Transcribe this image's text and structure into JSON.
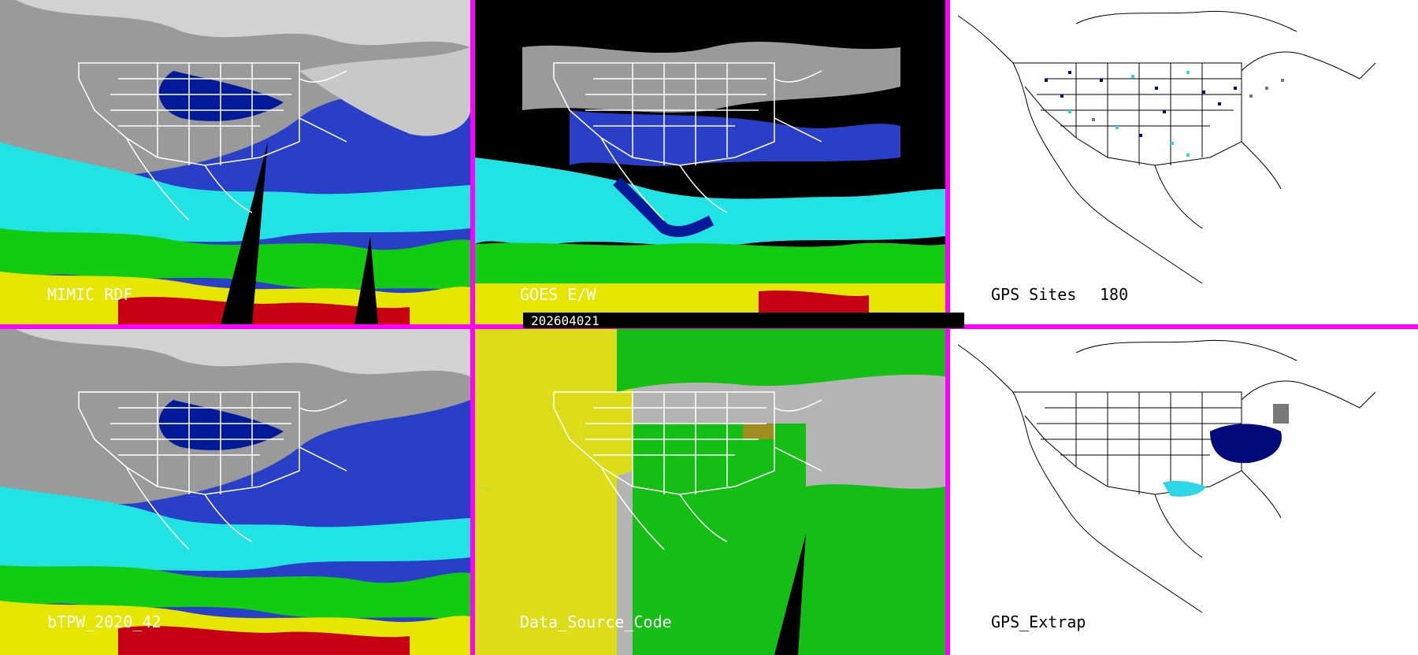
{
  "panels": {
    "mimic_rdf": {
      "label": "MIMIC RDF"
    },
    "goes_ew": {
      "label": "GOES E/W"
    },
    "gps_sites": {
      "label": "GPS Sites",
      "count": "180"
    },
    "btpw": {
      "label": "bTPW_2020_42"
    },
    "data_source": {
      "label": "Data_Source_Code"
    },
    "gps_extrap": {
      "label": "GPS_Extrap"
    }
  },
  "timestamp": "202604021",
  "colors": {
    "divider": "#ff00ff",
    "gray_low": "#8c8c8c",
    "blue_deep": "#001a99",
    "blue": "#1a3fd6",
    "cyan": "#22e3e3",
    "green": "#11cc11",
    "yellow": "#e6e600",
    "red": "#c80014",
    "source_gray": "#b4b4b4",
    "source_yellow": "#dcdc19",
    "source_green": "#14be14",
    "source_olive": "#a08c1e",
    "gps_navy": "#000a7a",
    "gps_cyan": "#2dd7e6",
    "gps_gray": "#787878"
  }
}
